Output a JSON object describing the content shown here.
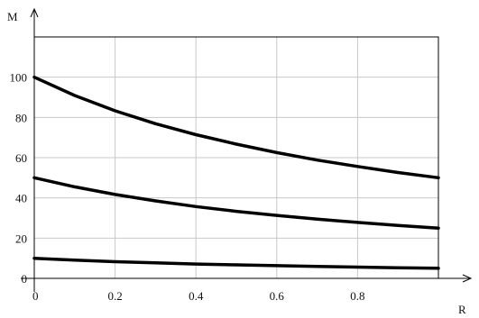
{
  "chart_data": {
    "type": "line",
    "title": "",
    "xlabel": "R",
    "ylabel": "M",
    "xlim": [
      0,
      1
    ],
    "ylim": [
      0,
      120
    ],
    "grid": true,
    "x_ticks": [
      0,
      0.2,
      0.4,
      0.6,
      0.8
    ],
    "x_tick_labels": [
      "0",
      "0.2",
      "0.4",
      "0.6",
      "0.8"
    ],
    "y_ticks": [
      0,
      20,
      40,
      60,
      80,
      100
    ],
    "y_tick_labels": [
      "0",
      "20",
      "40",
      "60",
      "80",
      "100"
    ],
    "series": [
      {
        "x": [
          0,
          0.1,
          0.2,
          0.3,
          0.4,
          0.5,
          0.6,
          0.7,
          0.8,
          0.9,
          1.0
        ],
        "values": [
          100,
          90.9,
          83.3,
          76.9,
          71.4,
          66.7,
          62.5,
          58.8,
          55.6,
          52.6,
          50.0
        ],
        "color": "#000000"
      },
      {
        "x": [
          0,
          0.1,
          0.2,
          0.3,
          0.4,
          0.5,
          0.6,
          0.7,
          0.8,
          0.9,
          1.0
        ],
        "values": [
          50,
          45.5,
          41.7,
          38.5,
          35.7,
          33.3,
          31.3,
          29.4,
          27.8,
          26.3,
          25.0
        ],
        "color": "#000000"
      },
      {
        "x": [
          0,
          0.1,
          0.2,
          0.3,
          0.4,
          0.5,
          0.6,
          0.7,
          0.8,
          0.9,
          1.0
        ],
        "values": [
          10,
          9.1,
          8.3,
          7.7,
          7.1,
          6.7,
          6.3,
          5.9,
          5.6,
          5.3,
          5.0
        ],
        "color": "#000000"
      }
    ]
  }
}
